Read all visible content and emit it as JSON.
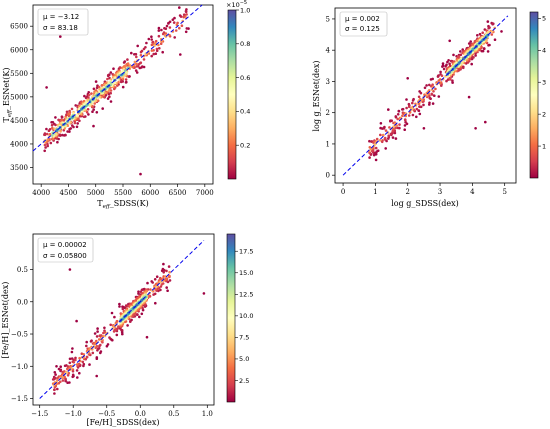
{
  "chart_data": [
    {
      "type": "scatter",
      "id": "teff",
      "xlabel_main": "T",
      "xlabel_sub": "eff",
      "xlabel_rest": "_SDSS(K)",
      "ylabel_main": "T",
      "ylabel_sub": "eff",
      "ylabel_rest": "_ESNet(K)",
      "xlim": [
        3850,
        7150
      ],
      "ylim": [
        3150,
        6950
      ],
      "x_ticks": [
        4000,
        4500,
        5000,
        5500,
        6000,
        6500,
        7000
      ],
      "x_tick_labels": [
        "4000",
        "4500",
        "5000",
        "5500",
        "6000",
        "6500",
        "7000"
      ],
      "y_ticks": [
        3500,
        4000,
        4500,
        5000,
        5500,
        6000,
        6500
      ],
      "y_tick_labels": [
        "3500",
        "4000",
        "4500",
        "5000",
        "5500",
        "6000",
        "6500"
      ],
      "stats": [
        "μ = −3.12",
        "σ = 83.18"
      ],
      "identity_line": [
        [
          3850,
          3850
        ],
        [
          6950,
          6950
        ]
      ],
      "cloud": {
        "x_range": [
          4050,
          6700
        ],
        "y_sigma": 150,
        "core_x_range": [
          4200,
          5600
        ],
        "n": 650
      },
      "outliers": [
        [
          4350,
          6280
        ],
        [
          5820,
          3360
        ],
        [
          6700,
          6450
        ],
        [
          4100,
          5200
        ],
        [
          6550,
          5900
        ]
      ],
      "colorbar": {
        "min": 0,
        "max": 1.0,
        "ticks": [
          0.2,
          0.4,
          0.6,
          0.8,
          1.0
        ],
        "tick_labels": [
          "0.2",
          "0.4",
          "0.6",
          "0.8",
          "1.0"
        ],
        "exponent_base": "×10",
        "exponent_power": "−5"
      }
    },
    {
      "type": "scatter",
      "id": "logg",
      "xlabel_main": "log g_SDSS(dex)",
      "ylabel_main": "log g_ESNet(dex)",
      "xlim": [
        -0.25,
        5.35
      ],
      "ylim": [
        -0.25,
        5.35
      ],
      "x_ticks": [
        0,
        1,
        2,
        3,
        4,
        5
      ],
      "x_tick_labels": [
        "0",
        "1",
        "2",
        "3",
        "4",
        "5"
      ],
      "y_ticks": [
        0,
        1,
        2,
        3,
        4,
        5
      ],
      "y_tick_labels": [
        "0",
        "1",
        "2",
        "3",
        "4",
        "5"
      ],
      "stats": [
        "μ = 0.002",
        "σ = 0.125"
      ],
      "identity_line": [
        [
          0,
          0
        ],
        [
          5.1,
          5.1
        ]
      ],
      "cloud": {
        "x_range": [
          0.8,
          4.7
        ],
        "y_sigma": 0.2,
        "core_x_range": [
          3.2,
          4.5
        ],
        "n": 650
      },
      "outliers": [
        [
          4.1,
          1.5
        ],
        [
          4.4,
          1.7
        ],
        [
          2.0,
          3.1
        ],
        [
          3.9,
          2.5
        ],
        [
          4.9,
          4.6
        ],
        [
          1.4,
          2.1
        ],
        [
          3.3,
          4.3
        ],
        [
          2.5,
          1.5
        ]
      ],
      "colorbar": {
        "min": 0,
        "max": 5.2,
        "ticks": [
          1,
          2,
          3,
          4,
          5
        ],
        "tick_labels": [
          "1",
          "2",
          "3",
          "4",
          "5"
        ]
      }
    },
    {
      "type": "scatter",
      "id": "feh",
      "xlabel_main": "[Fe/H]_SDSS(dex)",
      "ylabel_main": "[Fe/H]_ESNet(dex)",
      "xlim": [
        -1.6,
        1.1
      ],
      "ylim": [
        -1.6,
        1.05
      ],
      "x_ticks": [
        -1.5,
        -1.0,
        -0.5,
        0.0,
        0.5,
        1.0
      ],
      "x_tick_labels": [
        "−1.5",
        "−1.0",
        "−0.5",
        "0.0",
        "0.5",
        "1.0"
      ],
      "y_ticks": [
        -1.5,
        -1.0,
        -0.5,
        0.0,
        0.5
      ],
      "y_tick_labels": [
        "−1.5",
        "−1.0",
        "−0.5",
        "0.0",
        "0.5"
      ],
      "stats": [
        "μ = 0.00002",
        "σ = 0.05800"
      ],
      "identity_line": [
        [
          -1.5,
          -1.5
        ],
        [
          0.95,
          0.95
        ]
      ],
      "cloud": {
        "x_range": [
          -1.3,
          0.45
        ],
        "y_sigma": 0.1,
        "core_x_range": [
          -0.3,
          0.1
        ],
        "n": 650
      },
      "outliers": [
        [
          0.95,
          0.13
        ],
        [
          -1.05,
          0.5
        ],
        [
          -0.65,
          -1.15
        ],
        [
          -0.95,
          -0.3
        ],
        [
          0.1,
          -0.55
        ],
        [
          -1.25,
          -1.0
        ]
      ],
      "colorbar": {
        "min": 0,
        "max": 19.5,
        "ticks": [
          2.5,
          5.0,
          7.5,
          10.0,
          12.5,
          15.0,
          17.5
        ],
        "tick_labels": [
          "2.5",
          "5.0",
          "7.5",
          "10.0",
          "12.5",
          "15.0",
          "17.5"
        ]
      }
    }
  ],
  "colormap": [
    "#9e0142",
    "#d53e4f",
    "#f46d43",
    "#fdae61",
    "#fee08b",
    "#ffffbf",
    "#e6f598",
    "#abdda4",
    "#66c2a5",
    "#3288bd",
    "#5e4fa2"
  ],
  "line_color": "#0000ee"
}
